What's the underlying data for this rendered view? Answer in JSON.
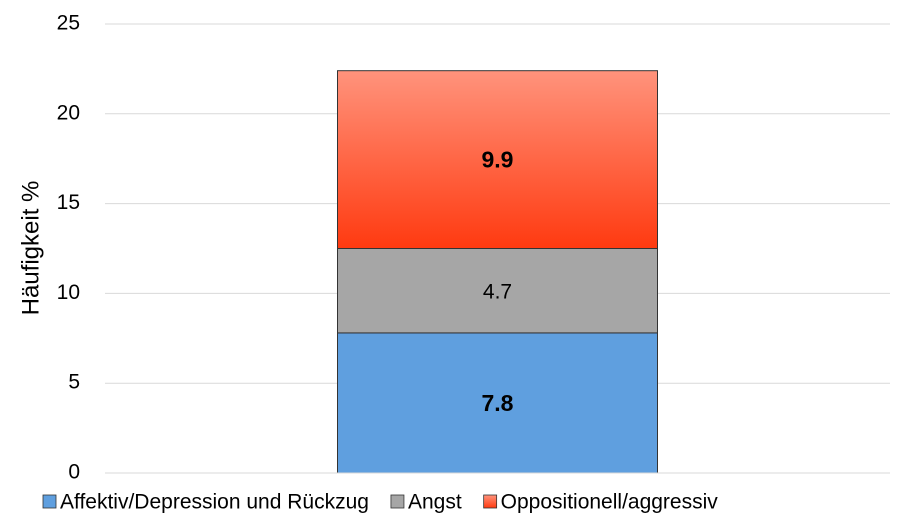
{
  "chart_data": {
    "type": "stacked_bar",
    "ylabel": "Häufigkeit %",
    "categories": [
      null
    ],
    "series": [
      {
        "name": "Affektiv/Depression und Rückzug",
        "color": "#5f9fdf",
        "values": [
          7.8
        ]
      },
      {
        "name": "Angst",
        "color": "#a6a6a6",
        "values": [
          4.7
        ]
      },
      {
        "name": "Oppositionell/aggressiv",
        "color": "#ff3a10",
        "gradient": true,
        "values": [
          9.9
        ]
      }
    ],
    "ylim": [
      0,
      25
    ],
    "yticks": [
      0,
      5,
      10,
      15,
      20,
      25
    ],
    "grid": true,
    "legend": "bottom"
  }
}
